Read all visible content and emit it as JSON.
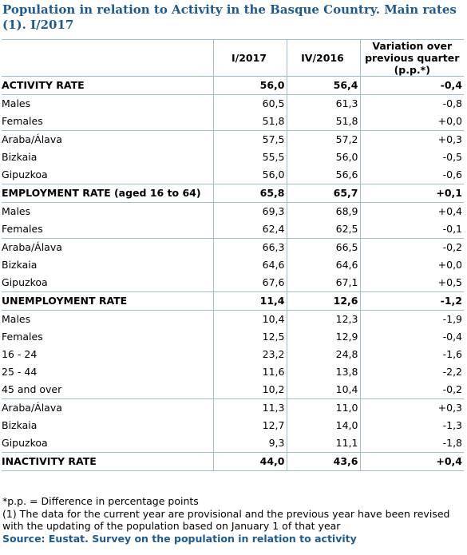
{
  "title": "Population in relation to Activity in the Basque Country. Main rates (1). I/2017",
  "headers": {
    "col1": "I/2017",
    "col2": "IV/2016",
    "col3": "Variation over previous quarter (p.p.*)"
  },
  "sections": [
    {
      "label": "ACTIVITY RATE",
      "v1": "56,0",
      "v2": "56,4",
      "v3": "-0,4",
      "groups": [
        [
          {
            "label": "Males",
            "v1": "60,5",
            "v2": "61,3",
            "v3": "-0,8"
          },
          {
            "label": "Females",
            "v1": "51,8",
            "v2": "51,8",
            "v3": "+0,0"
          }
        ],
        [
          {
            "label": "Araba/Álava",
            "v1": "57,5",
            "v2": "57,2",
            "v3": "+0,3"
          },
          {
            "label": "Bizkaia",
            "v1": "55,5",
            "v2": "56,0",
            "v3": "-0,5"
          },
          {
            "label": "Gipuzkoa",
            "v1": "56,0",
            "v2": "56,6",
            "v3": "-0,6"
          }
        ]
      ]
    },
    {
      "label": "EMPLOYMENT RATE (aged 16 to 64)",
      "v1": "65,8",
      "v2": "65,7",
      "v3": "+0,1",
      "groups": [
        [
          {
            "label": "Males",
            "v1": "69,3",
            "v2": "68,9",
            "v3": "+0,4"
          },
          {
            "label": "Females",
            "v1": "62,4",
            "v2": "62,5",
            "v3": "-0,1"
          }
        ],
        [
          {
            "label": "Araba/Álava",
            "v1": "66,3",
            "v2": "66,5",
            "v3": "-0,2"
          },
          {
            "label": "Bizkaia",
            "v1": "64,6",
            "v2": "64,6",
            "v3": "+0,0"
          },
          {
            "label": "Gipuzkoa",
            "v1": "67,6",
            "v2": "67,1",
            "v3": "+0,5"
          }
        ]
      ]
    },
    {
      "label": "UNEMPLOYMENT RATE",
      "v1": "11,4",
      "v2": "12,6",
      "v3": "-1,2",
      "groups": [
        [
          {
            "label": "Males",
            "v1": "10,4",
            "v2": "12,3",
            "v3": "-1,9"
          },
          {
            "label": "Females",
            "v1": "12,5",
            "v2": "12,9",
            "v3": "-0,4"
          },
          {
            "label": "16 - 24",
            "v1": "23,2",
            "v2": "24,8",
            "v3": "-1,6"
          },
          {
            "label": "25 - 44",
            "v1": "11,6",
            "v2": "13,8",
            "v3": "-2,2"
          },
          {
            "label": "45 and over",
            "v1": "10,2",
            "v2": "10,4",
            "v3": "-0,2"
          }
        ],
        [
          {
            "label": "Araba/Álava",
            "v1": "11,3",
            "v2": "11,0",
            "v3": "+0,3"
          },
          {
            "label": "Bizkaia",
            "v1": "12,7",
            "v2": "14,0",
            "v3": "-1,3"
          },
          {
            "label": "Gipuzkoa",
            "v1": "9,3",
            "v2": "11,1",
            "v3": "-1,8"
          }
        ]
      ]
    },
    {
      "label": "INACTIVITY RATE",
      "v1": "44,0",
      "v2": "43,6",
      "v3": "+0,4",
      "groups": []
    }
  ],
  "notes": {
    "pp": "*p.p. = Difference in percentage points",
    "footnote": "(1) The data for the current year are provisional and the previous year have been revised with the updating of the population based on January 1 of that year",
    "source": "Source: Eustat. Survey on the population in relation to activity"
  }
}
